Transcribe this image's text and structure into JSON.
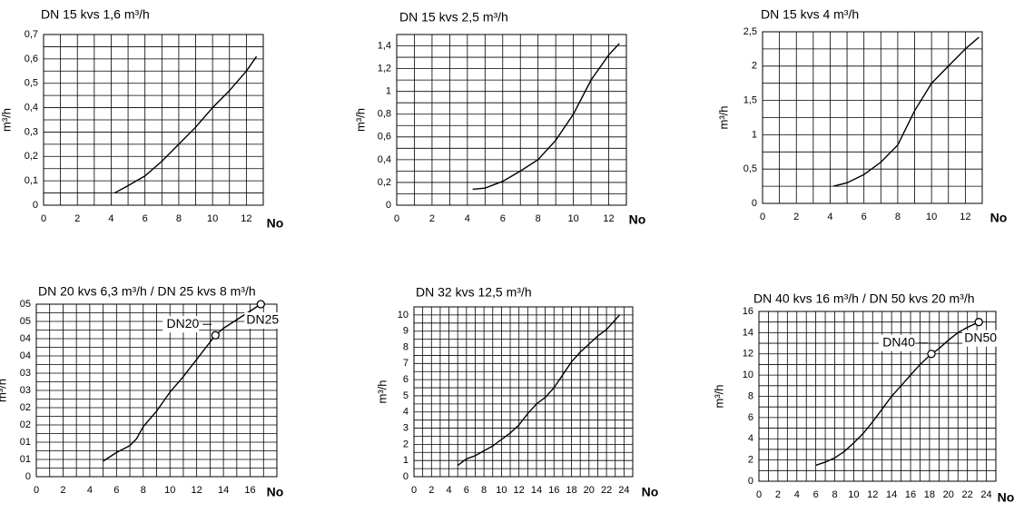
{
  "chart_data": [
    {
      "type": "line",
      "title": "DN 15  kvs 1,6 m³/h",
      "ylabel": "m³/h",
      "xlabel": "No",
      "grid": true,
      "xlim": [
        0,
        13
      ],
      "ylim": [
        0,
        0.7
      ],
      "xticks": [
        0,
        2,
        4,
        6,
        8,
        10,
        12
      ],
      "yticks": [
        0,
        {
          "value": 0.1,
          "label": "0,1"
        },
        {
          "value": 0.2,
          "label": "0,2"
        },
        {
          "value": 0.3,
          "label": "0,3"
        },
        {
          "value": 0.4,
          "label": "0,4"
        },
        {
          "value": 0.5,
          "label": "0,5"
        },
        {
          "value": 0.6,
          "label": "0,6"
        },
        {
          "value": 0.7,
          "label": "0,7"
        }
      ],
      "series": [
        {
          "color": "#000000",
          "x": [
            4.2,
            5,
            6,
            7,
            8,
            9,
            10,
            11,
            12,
            12.6
          ],
          "values": [
            0.05,
            0.08,
            0.12,
            0.18,
            0.25,
            0.32,
            0.4,
            0.47,
            0.55,
            0.61
          ]
        }
      ]
    },
    {
      "type": "line",
      "title": "DN 15  kvs 2,5 m³/h",
      "ylabel": "m³/h",
      "xlabel": "No",
      "grid": true,
      "xlim": [
        0,
        13
      ],
      "ylim": [
        0,
        1.5
      ],
      "xticks": [
        0,
        2,
        4,
        6,
        8,
        10,
        12
      ],
      "yticks": [
        0,
        {
          "value": 0.2,
          "label": "0,2"
        },
        {
          "value": 0.4,
          "label": "0,4"
        },
        {
          "value": 0.6,
          "label": "0,6"
        },
        {
          "value": 0.8,
          "label": "0,8"
        },
        1,
        {
          "value": 1.2,
          "label": "1,2"
        },
        {
          "value": 1.4,
          "label": "1,4"
        }
      ],
      "series": [
        {
          "color": "#000000",
          "x": [
            4.3,
            5,
            6,
            7,
            8,
            9,
            10,
            11,
            12,
            12.6
          ],
          "values": [
            0.14,
            0.15,
            0.21,
            0.3,
            0.4,
            0.57,
            0.8,
            1.1,
            1.32,
            1.42
          ]
        }
      ]
    },
    {
      "type": "line",
      "title": "DN 15  kvs 4 m³/h",
      "ylabel": "m³/h",
      "xlabel": "No",
      "grid": true,
      "xlim": [
        0,
        13
      ],
      "ylim": [
        0,
        2.5
      ],
      "xticks": [
        0,
        2,
        4,
        6,
        8,
        10,
        12
      ],
      "yticks": [
        0,
        {
          "value": 0.5,
          "label": "0,5"
        },
        1,
        {
          "value": 1.5,
          "label": "1,5"
        },
        2,
        {
          "value": 2.5,
          "label": "2,5"
        }
      ],
      "series": [
        {
          "color": "#000000",
          "x": [
            4.2,
            5,
            6,
            7,
            8,
            9,
            10,
            11,
            12,
            12.8
          ],
          "values": [
            0.25,
            0.3,
            0.42,
            0.6,
            0.85,
            1.35,
            1.75,
            2.0,
            2.25,
            2.42
          ]
        }
      ]
    },
    {
      "type": "line",
      "title": "DN 20 kvs 6,3 m³/h /  DN 25 kvs 8 m³/h",
      "ylabel": "m³/h",
      "xlabel": "No",
      "grid": true,
      "xlim": [
        0,
        18
      ],
      "ylim": [
        0,
        0.5
      ],
      "xticks": [
        0,
        2,
        4,
        6,
        8,
        10,
        12,
        14,
        16
      ],
      "yticks": [
        0,
        {
          "value": 0.05,
          "label": "01"
        },
        {
          "value": 0.1,
          "label": "01"
        },
        {
          "value": 0.15,
          "label": "02"
        },
        {
          "value": 0.2,
          "label": "02"
        },
        {
          "value": 0.25,
          "label": "03"
        },
        {
          "value": 0.3,
          "label": "03"
        },
        {
          "value": 0.35,
          "label": "04"
        },
        {
          "value": 0.4,
          "label": "04"
        },
        {
          "value": 0.45,
          "label": "05"
        },
        {
          "value": 0.5,
          "label": "05"
        }
      ],
      "series": [
        {
          "color": "#000000",
          "x": [
            5,
            6,
            7,
            7.5,
            8,
            9,
            10,
            11,
            12,
            13,
            13.4,
            14,
            15,
            16,
            16.8
          ],
          "values": [
            0.045,
            0.07,
            0.09,
            0.11,
            0.145,
            0.19,
            0.245,
            0.29,
            0.34,
            0.39,
            0.41,
            0.43,
            0.455,
            0.48,
            0.5
          ]
        }
      ],
      "annotations": [
        {
          "text": "DN20",
          "x": 13.4,
          "y": 0.41
        },
        {
          "text": "DN25",
          "x": 16.8,
          "y": 0.5
        }
      ]
    },
    {
      "type": "line",
      "title": "DN 32  kvs 12,5 m³/h",
      "ylabel": "m³/h",
      "xlabel": "No",
      "grid": true,
      "xlim": [
        0,
        25
      ],
      "ylim": [
        0,
        10.5
      ],
      "xticks": [
        0,
        2,
        4,
        6,
        8,
        10,
        12,
        14,
        16,
        18,
        20,
        22,
        24
      ],
      "yticks": [
        0,
        1,
        2,
        3,
        4,
        5,
        6,
        7,
        8,
        9,
        10
      ],
      "series": [
        {
          "color": "#000000",
          "x": [
            5,
            6,
            7,
            8,
            9,
            10,
            11,
            12,
            13,
            14,
            15,
            16,
            17,
            18,
            19,
            20,
            21,
            22,
            23.5
          ],
          "values": [
            0.7,
            1.1,
            1.3,
            1.6,
            1.9,
            2.3,
            2.7,
            3.2,
            3.9,
            4.5,
            4.9,
            5.5,
            6.3,
            7.1,
            7.7,
            8.2,
            8.7,
            9.1,
            10
          ]
        }
      ]
    },
    {
      "type": "line",
      "title": "DN 40 kvs 16 m³/h  /  DN 50  kvs 20 m³/h",
      "ylabel": "m³/h",
      "xlabel": "No",
      "grid": true,
      "xlim": [
        0,
        25
      ],
      "ylim": [
        0,
        16
      ],
      "xticks": [
        0,
        2,
        4,
        6,
        8,
        10,
        12,
        14,
        16,
        18,
        20,
        22,
        24
      ],
      "yticks": [
        0,
        2,
        4,
        6,
        8,
        10,
        12,
        14,
        16
      ],
      "series": [
        {
          "color": "#000000",
          "x": [
            6,
            7,
            8,
            9,
            10,
            11,
            12,
            13,
            14,
            15,
            16,
            17,
            18.2,
            19,
            20,
            21,
            22,
            23.2
          ],
          "values": [
            1.5,
            1.8,
            2.2,
            2.8,
            3.6,
            4.5,
            5.6,
            6.8,
            8,
            9,
            10,
            11,
            12,
            12.5,
            13.3,
            14,
            14.5,
            15
          ]
        }
      ],
      "annotations": [
        {
          "text": "DN40",
          "x": 18.2,
          "y": 12
        },
        {
          "text": "DN50",
          "x": 23.2,
          "y": 15
        }
      ]
    }
  ]
}
